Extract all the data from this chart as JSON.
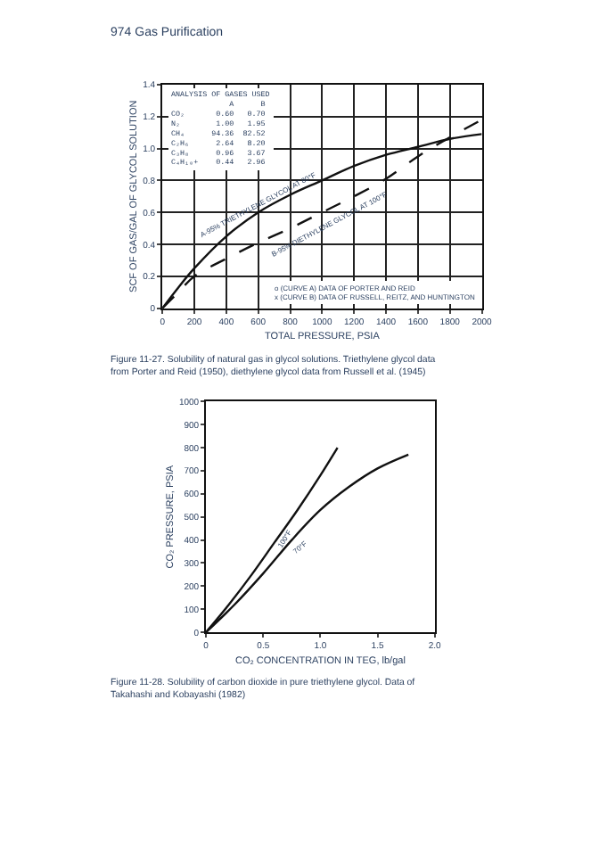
{
  "chart_data": [
    {
      "type": "line",
      "title": "974 Gas Purification",
      "xlabel": "TOTAL PRESSURE, PSIA",
      "ylabel": "SCF OF GAS/GAL OF GLYCOL SOLUTION",
      "x": [
        0,
        100,
        200,
        400,
        600,
        800,
        1000,
        1200,
        1400,
        1600,
        1800,
        2000
      ],
      "series": [
        {
          "color": "#111111",
          "line_style": "solid",
          "values": [
            0,
            0.13,
            0.25,
            0.45,
            0.6,
            0.71,
            0.8,
            0.89,
            0.96,
            1.01,
            1.06,
            1.09
          ]
        },
        {
          "color": "#111111",
          "line_style": "dashed",
          "values": [
            0,
            0.1,
            0.2,
            0.31,
            0.41,
            0.5,
            0.6,
            0.7,
            0.81,
            0.95,
            1.07,
            1.18
          ]
        }
      ],
      "xlim": [
        0,
        2000
      ],
      "xticks": [
        0,
        200,
        400,
        600,
        800,
        1000,
        1200,
        1400,
        1600,
        1800,
        2000
      ],
      "ylim": [
        0,
        1.4
      ],
      "yticks": [
        0,
        0.2,
        0.4,
        0.6,
        0.8,
        {
          "value": 1,
          "label": "1.0"
        },
        1.2,
        1.4
      ],
      "grid": true,
      "marker": "none",
      "annotations": [
        "ANALYSIS OF GASES USED\n             A      B\nCO₂       0.60   0.70\nN₂        1.00   1.95\nCH₄      94.36  82.52\nC₂H₆      2.64   8.20\nC₃H₈      0.96   3.67\nC₄H₁₀+    0.44   2.96",
        "o (CURVE A) DATA OF PORTER AND REID\nx (CURVE B) DATA OF RUSSELL, REITZ, AND HUNTINGTON",
        "Figure 11-27. Solubility of natural gas in glycol solutions. Triethylene glycol data from Porter and Reid (1950), diethylene glycol data from Russell et al. (1945)",
        {
          "text": "A-95% TRIETHYLENE GLYCOL AT 80°F",
          "x": 600,
          "y": 0.6
        },
        {
          "text": "B-95% DIETHYLENE GLYCOL AT 100°F",
          "x": 1000,
          "y": 0.6
        }
      ]
    },
    {
      "type": "line",
      "xlabel": "CO₂ CONCENTRATION IN TEG, lb/gal",
      "ylabel": "CO₂ PRESSURE, PSIA",
      "series": [
        {
          "color": "#111111",
          "x": [
            0,
            0.2,
            0.4,
            0.6,
            0.8,
            1.0,
            1.15
          ],
          "values": [
            0,
            120,
            250,
            390,
            530,
            680,
            800
          ]
        },
        {
          "color": "#111111",
          "x": [
            0,
            0.25,
            0.5,
            0.75,
            1.0,
            1.25,
            1.5,
            1.77
          ],
          "values": [
            0,
            120,
            255,
            400,
            530,
            630,
            710,
            770
          ]
        }
      ],
      "xlim": [
        0,
        2
      ],
      "xticks": [
        0,
        0.5,
        {
          "value": 1,
          "label": "1.0"
        },
        1.5,
        {
          "value": 2,
          "label": "2.0"
        }
      ],
      "ylim": [
        0,
        1000
      ],
      "yticks": [
        0,
        100,
        200,
        300,
        400,
        500,
        600,
        700,
        800,
        900,
        1000
      ],
      "grid": false,
      "marker": "none",
      "line_style": "solid",
      "annotations": [
        "Figure 11-28. Solubility of carbon dioxide in pure triethylene glycol. Data of Takahashi and Kobayashi (1982)",
        {
          "text": "100°F",
          "x": 0.6,
          "y": 390
        },
        {
          "text": "70°F",
          "x": 0.75,
          "y": 400
        }
      ]
    }
  ]
}
